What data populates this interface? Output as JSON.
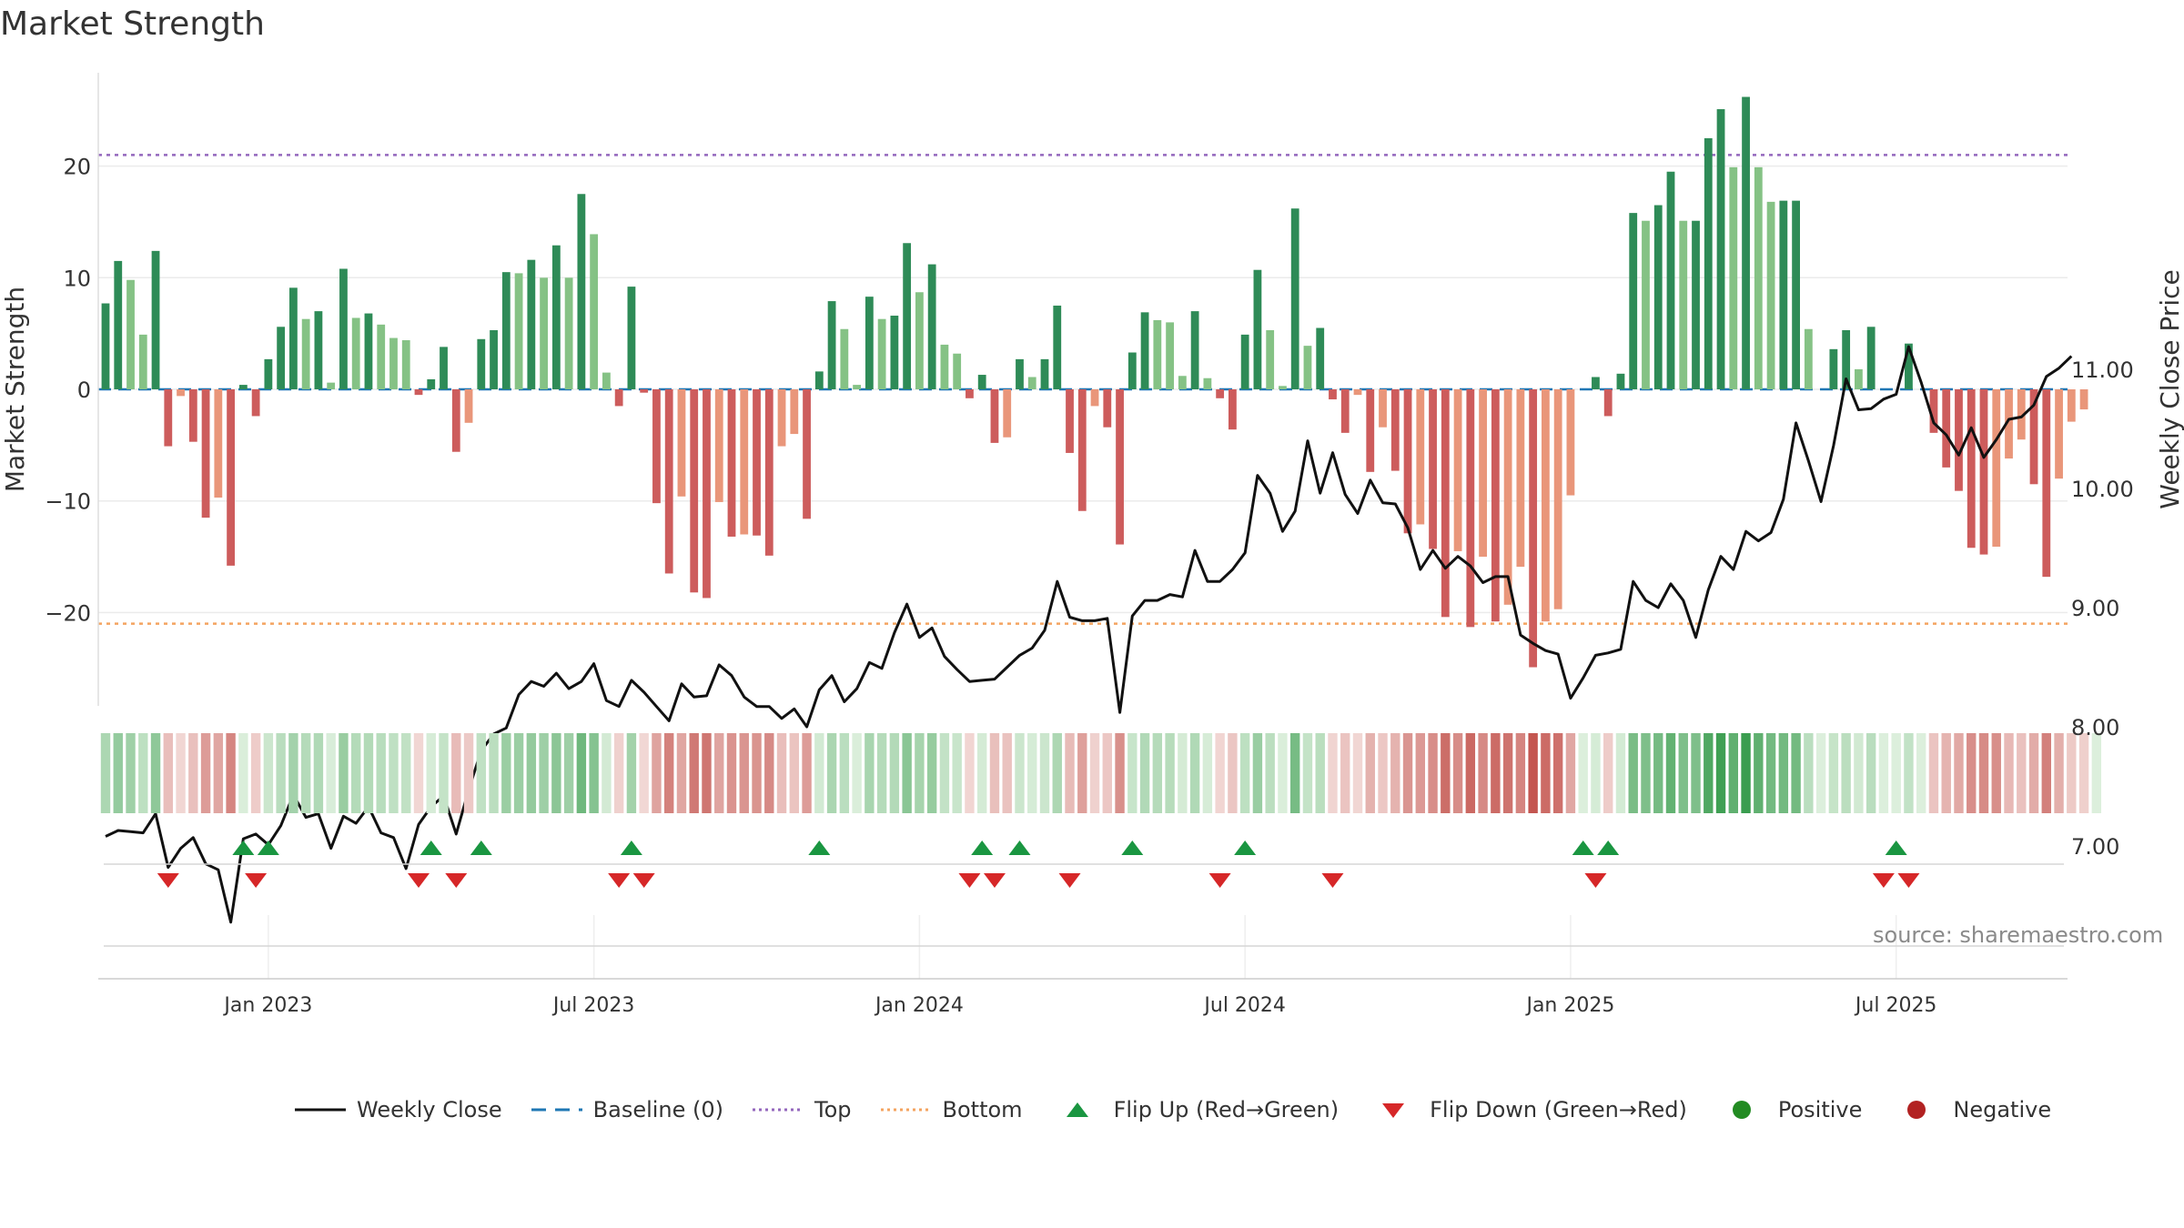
{
  "chart_data": {
    "type": "bar+line",
    "title": "Market Strength",
    "source": "source: sharemaestro.com",
    "y_left": {
      "label": "Market Strength",
      "ticks": [
        -20,
        -10,
        0,
        10,
        20
      ],
      "tick_labels": [
        "−20",
        "−10",
        "0",
        "10",
        "20"
      ],
      "range": [
        -28,
        28.5
      ]
    },
    "y_right": {
      "label": "Weekly Close Price",
      "ticks": [
        7.0,
        8.0,
        9.0,
        10.0,
        11.0
      ],
      "tick_labels": [
        "7.00",
        "8.00",
        "9.00",
        "10.00",
        "11.00"
      ],
      "range": [
        6.3,
        11.6
      ]
    },
    "x_axis": {
      "tick_labels": [
        "Jan 2023",
        "Jul 2023",
        "Jan 2024",
        "Jul 2024",
        "Jan 2025",
        "Jul 2025"
      ],
      "tick_week_index": [
        13,
        39,
        65,
        91,
        117,
        143
      ]
    },
    "levels": {
      "top": 21,
      "bottom": -21,
      "baseline": 0
    },
    "strength": [
      7.7,
      11.5,
      9.8,
      4.9,
      12.4,
      -5.1,
      -0.6,
      -4.7,
      -11.5,
      -9.7,
      -15.8,
      0.4,
      -2.4,
      2.7,
      5.6,
      9.1,
      6.3,
      7.0,
      0.6,
      10.8,
      6.4,
      6.8,
      5.8,
      4.6,
      4.4,
      -0.5,
      0.9,
      3.8,
      -5.6,
      -3.0,
      4.5,
      5.3,
      10.5,
      10.4,
      11.6,
      10.0,
      12.9,
      10.0,
      17.5,
      13.9,
      1.5,
      -1.5,
      9.2,
      -0.3,
      -10.2,
      -16.5,
      -9.6,
      -18.2,
      -18.7,
      -10.1,
      -13.2,
      -13.0,
      -13.1,
      -14.9,
      -5.1,
      -4.0,
      -11.6,
      1.6,
      7.9,
      5.4,
      0.4,
      8.3,
      6.3,
      6.6,
      13.1,
      8.7,
      11.2,
      4.0,
      3.2,
      -0.8,
      1.3,
      -4.8,
      -4.3,
      2.7,
      1.1,
      2.7,
      7.5,
      -5.7,
      -10.9,
      -1.5,
      -3.4,
      -13.9,
      3.3,
      6.9,
      6.2,
      6.0,
      1.2,
      7.0,
      1.0,
      -0.8,
      -3.6,
      4.9,
      10.7,
      5.3,
      0.3,
      16.2,
      3.9,
      5.5,
      -0.9,
      -3.9,
      -0.5,
      -7.4,
      -3.4,
      -7.3,
      -12.9,
      -12.1,
      -14.3,
      -20.4,
      -14.5,
      -21.3,
      -15.0,
      -20.8,
      -19.3,
      -15.9,
      -24.9,
      -20.8,
      -19.7,
      -9.5,
      0,
      1.1,
      -2.4,
      1.4,
      15.8,
      15.1,
      16.5,
      19.5,
      15.1,
      15.1,
      22.5,
      25.1,
      19.9,
      26.2,
      19.9,
      16.8,
      16.9,
      16.9,
      5.4,
      0,
      3.6,
      5.3,
      1.8,
      5.6,
      0,
      0,
      4.1,
      0,
      -3.9,
      -7.0,
      -9.1,
      -14.2,
      -14.8,
      -14.1,
      -6.2,
      -4.5,
      -8.5,
      -16.8,
      -8.0,
      -2.9,
      -1.8,
      0
    ],
    "weekly_close": [
      7.08,
      7.13,
      7.12,
      7.11,
      7.27,
      6.82,
      6.98,
      7.07,
      6.85,
      6.8,
      6.36,
      7.06,
      7.1,
      7.01,
      7.17,
      7.43,
      7.24,
      7.27,
      6.98,
      7.25,
      7.19,
      7.33,
      7.11,
      7.07,
      6.81,
      7.18,
      7.33,
      7.42,
      7.1,
      7.47,
      7.8,
      7.94,
      7.99,
      8.27,
      8.38,
      8.34,
      8.45,
      8.32,
      8.38,
      8.53,
      8.22,
      8.17,
      8.39,
      8.29,
      8.17,
      8.05,
      8.36,
      8.25,
      8.26,
      8.52,
      8.43,
      8.25,
      8.17,
      8.17,
      8.07,
      8.15,
      8.0,
      8.31,
      8.43,
      8.21,
      8.32,
      8.54,
      8.49,
      8.79,
      9.03,
      8.75,
      8.83,
      8.59,
      8.48,
      8.38,
      8.39,
      8.4,
      8.5,
      8.6,
      8.66,
      8.81,
      9.22,
      8.92,
      8.89,
      8.89,
      8.91,
      8.12,
      8.93,
      9.06,
      9.06,
      9.11,
      9.09,
      9.48,
      9.22,
      9.22,
      9.32,
      9.46,
      10.11,
      9.96,
      9.64,
      9.81,
      10.4,
      9.96,
      10.3,
      9.95,
      9.79,
      10.07,
      9.88,
      9.87,
      9.67,
      9.32,
      9.48,
      9.33,
      9.43,
      9.35,
      9.21,
      9.26,
      9.26,
      8.77,
      8.7,
      8.64,
      8.61,
      8.24,
      8.41,
      8.6,
      8.62,
      8.65,
      9.22,
      9.06,
      9.0,
      9.2,
      9.06,
      8.75,
      9.15,
      9.43,
      9.32,
      9.64,
      9.56,
      9.63,
      9.91,
      10.55,
      10.23,
      9.89,
      10.36,
      10.92,
      10.66,
      10.67,
      10.75,
      10.79,
      11.19,
      10.89,
      10.55,
      10.45,
      10.28,
      10.51,
      10.26,
      10.41,
      10.58,
      10.6,
      10.7,
      10.94,
      11.01,
      11.11
    ]
  },
  "flips": {
    "up_week_indices": [
      11,
      13,
      26,
      30,
      42,
      57,
      70,
      73,
      82,
      91,
      118,
      120,
      143
    ],
    "down_week_indices": [
      5,
      12,
      25,
      28,
      41,
      43,
      69,
      71,
      77,
      89,
      98,
      119,
      142,
      144
    ]
  },
  "legend": {
    "weekly_close": "Weekly Close",
    "baseline": "Baseline (0)",
    "top": "Top",
    "bottom": "Bottom",
    "flip_up": "Flip Up (Red→Green)",
    "flip_down": "Flip Down (Green→Red)",
    "positive": "Positive",
    "negative": "Negative"
  },
  "colors": {
    "pos_strong": "#2e8b57",
    "pos_light": "#85c285",
    "neg_strong": "#cd5c5c",
    "neg_light": "#e9967a",
    "line": "#111111",
    "top_line": "#9467bd",
    "bottom_line": "#f4a460",
    "baseline": "#1f77b4",
    "flip_up": "#1a9641",
    "flip_down": "#d62728",
    "positive_dot": "#228b22",
    "negative_dot": "#b22222",
    "grid": "#ebebeb",
    "axis_text": "#333333"
  }
}
